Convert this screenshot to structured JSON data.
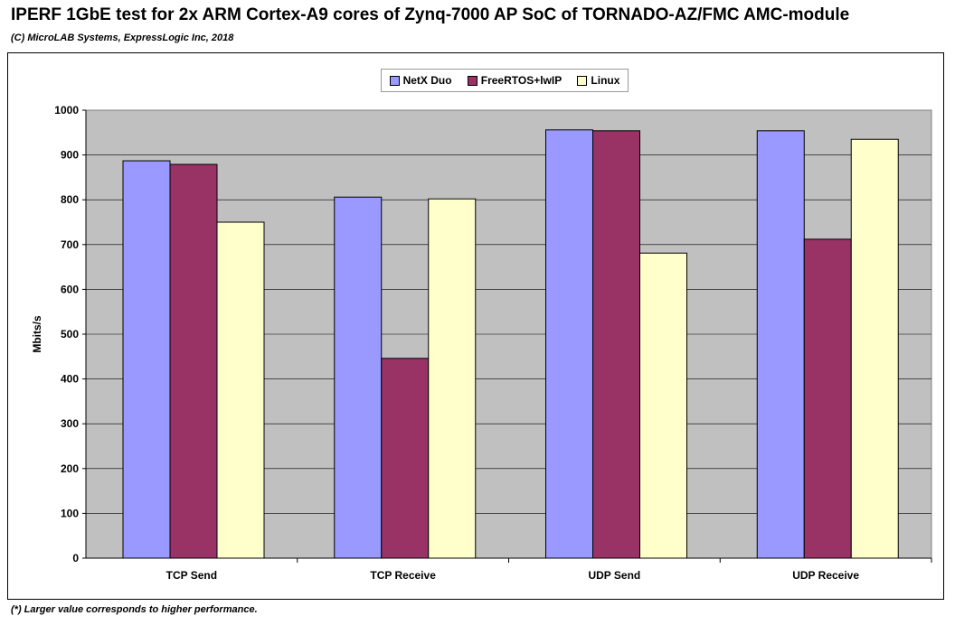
{
  "chart_data": {
    "type": "bar",
    "title": "IPERF 1GbE test for 2x ARM Cortex-A9 cores of Zynq-7000 AP SoC of TORNADO-AZ/FMC AMC-module",
    "subtitle": "(C) MicroLAB Systems, ExpressLogic Inc, 2018",
    "footnote": "(*) Larger value corresponds to higher performance.",
    "xlabel": "",
    "ylabel": "Mbits/s",
    "ylim": [
      0,
      1000
    ],
    "yticks": [
      0,
      100,
      200,
      300,
      400,
      500,
      600,
      700,
      800,
      900,
      1000
    ],
    "grid": true,
    "legend_position": "top-center",
    "plot_background": "#c0c0c0",
    "categories": [
      "TCP Send",
      "TCP Receive",
      "UDP Send",
      "UDP Receive"
    ],
    "series": [
      {
        "name": "NetX Duo",
        "color": "#9999ff",
        "values": [
          887,
          806,
          956,
          954
        ]
      },
      {
        "name": "FreeRTOS+lwIP",
        "color": "#993366",
        "values": [
          879,
          446,
          954,
          712
        ]
      },
      {
        "name": "Linux",
        "color": "#ffffcc",
        "values": [
          750,
          802,
          681,
          935
        ]
      }
    ]
  }
}
